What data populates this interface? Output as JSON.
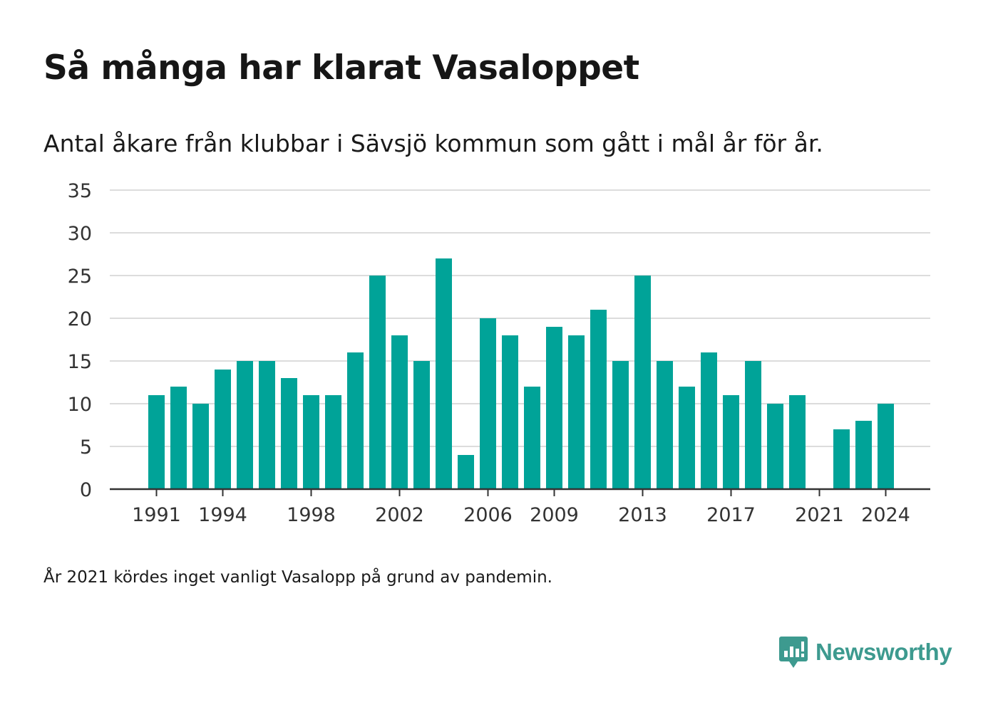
{
  "title": "Så många har klarat Vasaloppet",
  "subtitle": "Antal åkare från klubbar i Sävsjö kommun som gått i mål år för år.",
  "note": "År 2021 kördes inget vanligt Vasalopp på grund av pandemin.",
  "brand": {
    "name": "Newsworthy",
    "icon": "newsworthy-logo-icon",
    "color": "#3d9a8f"
  },
  "colors": {
    "bar": "#00a398",
    "grid": "#dcdcdc",
    "axis": "#333333"
  },
  "chart_data": {
    "type": "bar",
    "title": "Så många har klarat Vasaloppet",
    "subtitle": "Antal åkare från klubbar i Sävsjö kommun som gått i mål år för år.",
    "xlabel": "",
    "ylabel": "",
    "ylim": [
      0,
      35
    ],
    "yticks": [
      0,
      5,
      10,
      15,
      20,
      25,
      30,
      35
    ],
    "xticks": [
      1991,
      1994,
      1998,
      2002,
      2006,
      2009,
      2013,
      2017,
      2021,
      2024
    ],
    "grid": true,
    "legend": "none",
    "categories": [
      1991,
      1992,
      1993,
      1994,
      1995,
      1996,
      1997,
      1998,
      1999,
      2000,
      2001,
      2002,
      2003,
      2004,
      2005,
      2006,
      2007,
      2008,
      2009,
      2010,
      2011,
      2012,
      2013,
      2014,
      2015,
      2016,
      2017,
      2018,
      2019,
      2020,
      2021,
      2022,
      2023,
      2024
    ],
    "values": [
      11,
      12,
      10,
      14,
      15,
      15,
      13,
      11,
      11,
      16,
      25,
      18,
      15,
      27,
      4,
      20,
      18,
      12,
      19,
      18,
      21,
      15,
      25,
      15,
      12,
      16,
      11,
      15,
      10,
      11,
      null,
      7,
      8,
      10
    ]
  }
}
